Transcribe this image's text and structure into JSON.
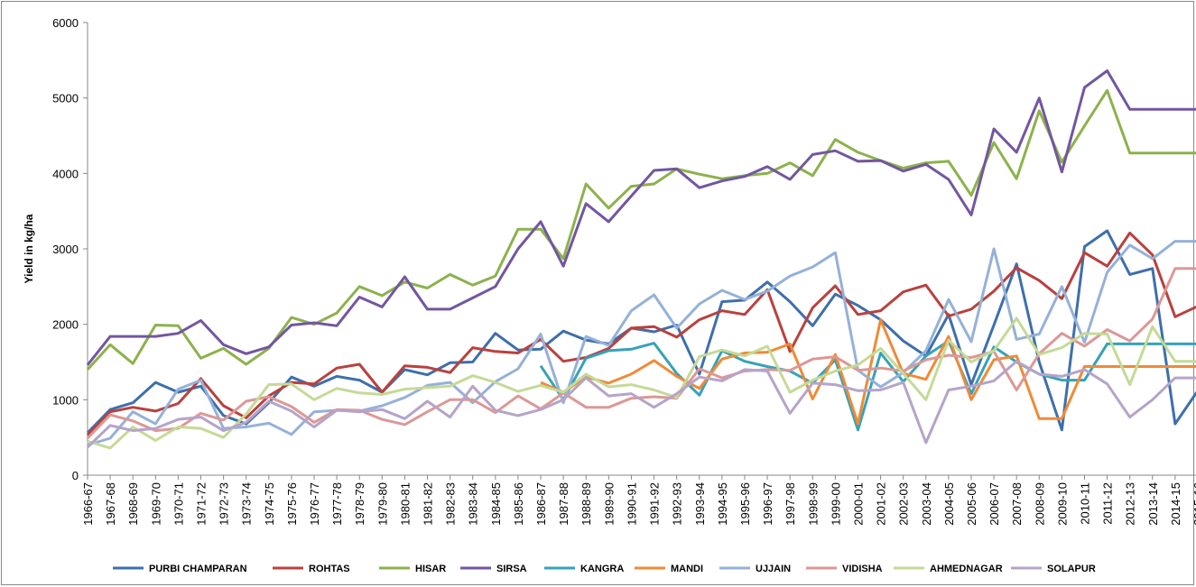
{
  "chart_data": {
    "type": "line",
    "y_label": "Yield in kg/ha",
    "grid": false,
    "legend": "bottom",
    "ylim": [
      0,
      6000
    ],
    "yticks": [
      0,
      1000,
      2000,
      3000,
      4000,
      5000,
      6000
    ],
    "categories": [
      "1966-67",
      "1967-68",
      "1968-69",
      "1969-70",
      "1970-71",
      "1971-72",
      "1972-73",
      "1973-74",
      "1974-75",
      "1975-76",
      "1976-77",
      "1977-78",
      "1978-79",
      "1979-80",
      "1980-81",
      "1981-82",
      "1982-83",
      "1983-84",
      "1984-85",
      "1985-86",
      "1986-87",
      "1987-88",
      "1988-89",
      "1989-90",
      "1990-91",
      "1991-92",
      "1992-93",
      "1993-94",
      "1994-95",
      "1995-96",
      "1996-97",
      "1997-98",
      "1998-99",
      "1999-00",
      "2000-01",
      "2001-02",
      "2002-03",
      "2003-04",
      "2004-05",
      "2005-06",
      "2006-07",
      "2007-08",
      "2008-09",
      "2009-10",
      "2010-11",
      "2011-12",
      "2012-13",
      "2013-14",
      "2014-15",
      "2015-16"
    ],
    "series": [
      {
        "name": "PURBI CHAMPARAN",
        "color": "#3e6fab",
        "values": [
          560,
          870,
          960,
          1230,
          1100,
          1180,
          790,
          680,
          960,
          1300,
          1180,
          1310,
          1260,
          1100,
          1400,
          1330,
          1490,
          1500,
          1880,
          1660,
          1670,
          1910,
          1790,
          1740,
          1950,
          1900,
          1990,
          1340,
          2300,
          2320,
          2560,
          2300,
          1980,
          2400,
          2250,
          2060,
          1780,
          1580,
          2130,
          1200,
          1990,
          2800,
          1500,
          600,
          3030,
          3240,
          2660,
          2740,
          680,
          1120
        ]
      },
      {
        "name": "ROHTAS",
        "color": "#b9413e",
        "values": [
          530,
          840,
          900,
          850,
          950,
          1280,
          920,
          760,
          1050,
          1230,
          1210,
          1420,
          1470,
          1100,
          1450,
          1430,
          1360,
          1690,
          1640,
          1620,
          1800,
          1510,
          1560,
          1680,
          1950,
          1970,
          1830,
          2060,
          2180,
          2130,
          2460,
          1640,
          2220,
          2510,
          2130,
          2180,
          2430,
          2520,
          2110,
          2200,
          2440,
          2750,
          2580,
          2340,
          2950,
          2770,
          3210,
          2920,
          2100,
          2240
        ]
      },
      {
        "name": "HISAR",
        "color": "#8cb24c",
        "values": [
          1400,
          1730,
          1480,
          1990,
          1980,
          1550,
          1680,
          1470,
          1680,
          2090,
          2000,
          2150,
          2500,
          2380,
          2560,
          2480,
          2660,
          2520,
          2640,
          3260,
          3260,
          2870,
          3860,
          3540,
          3830,
          3860,
          4060,
          3990,
          3930,
          3970,
          4000,
          4140,
          3970,
          4450,
          4280,
          4170,
          4070,
          4140,
          4160,
          3710,
          4410,
          3930,
          4830,
          4150,
          4630,
          5100,
          4270,
          4270,
          4270,
          4270
        ]
      },
      {
        "name": "SIRSA",
        "color": "#7356a0",
        "values": [
          1460,
          1840,
          1840,
          1840,
          1880,
          2050,
          1730,
          1610,
          1700,
          1990,
          2020,
          1980,
          2360,
          2230,
          2630,
          2200,
          2200,
          2350,
          2500,
          3000,
          3360,
          2770,
          3600,
          3360,
          3700,
          4040,
          4060,
          3810,
          3900,
          3960,
          4090,
          3920,
          4250,
          4300,
          4160,
          4170,
          4030,
          4120,
          3920,
          3450,
          4590,
          4280,
          5000,
          4020,
          5140,
          5360,
          4850,
          4850,
          4850,
          4850
        ]
      },
      {
        "name": "KANGRA",
        "color": "#36a2b8",
        "values": [
          null,
          null,
          null,
          null,
          null,
          null,
          null,
          null,
          null,
          null,
          null,
          null,
          null,
          null,
          null,
          null,
          null,
          null,
          null,
          null,
          1450,
          1000,
          1550,
          1650,
          1670,
          1750,
          1350,
          1060,
          1650,
          1510,
          1440,
          1380,
          1220,
          1530,
          600,
          1620,
          1240,
          1580,
          1780,
          1080,
          1700,
          1500,
          1340,
          1260,
          1260,
          1740,
          1740,
          1740,
          1740,
          1740
        ]
      },
      {
        "name": "MANDI",
        "color": "#f08a36",
        "values": [
          null,
          null,
          null,
          null,
          null,
          null,
          null,
          null,
          null,
          null,
          null,
          null,
          null,
          null,
          null,
          null,
          null,
          null,
          null,
          null,
          1230,
          1100,
          1300,
          1220,
          1340,
          1520,
          1310,
          1150,
          1540,
          1620,
          1630,
          1740,
          1010,
          1600,
          680,
          2060,
          1350,
          1270,
          1840,
          1000,
          1530,
          1580,
          750,
          750,
          1440,
          1440,
          1440,
          1440,
          1440,
          1440
        ]
      },
      {
        "name": "UJJAIN",
        "color": "#95b1d8",
        "values": [
          400,
          490,
          840,
          680,
          1140,
          1260,
          620,
          640,
          690,
          540,
          840,
          860,
          850,
          920,
          1030,
          1190,
          1230,
          960,
          1240,
          1410,
          1870,
          960,
          1840,
          1720,
          2180,
          2390,
          1950,
          2270,
          2450,
          2330,
          2440,
          2640,
          2760,
          2950,
          1390,
          1170,
          1360,
          1650,
          2330,
          1770,
          3000,
          1800,
          1870,
          2500,
          1760,
          2690,
          3050,
          2870,
          3100,
          3100
        ]
      },
      {
        "name": "VIDISHA",
        "color": "#dc9896",
        "values": [
          490,
          800,
          720,
          590,
          620,
          820,
          730,
          980,
          1040,
          910,
          700,
          870,
          860,
          740,
          670,
          840,
          1000,
          1000,
          830,
          1050,
          880,
          1090,
          900,
          900,
          1020,
          1040,
          1020,
          1410,
          1290,
          1380,
          1400,
          1390,
          1540,
          1570,
          1390,
          1420,
          1380,
          1530,
          1590,
          1560,
          1640,
          1130,
          1610,
          1880,
          1710,
          1930,
          1780,
          2070,
          2740,
          2740
        ]
      },
      {
        "name": "AHMEDNAGAR",
        "color": "#c4da97",
        "values": [
          450,
          360,
          640,
          460,
          640,
          620,
          500,
          810,
          1200,
          1210,
          1000,
          1150,
          1090,
          1070,
          1140,
          1160,
          1180,
          1320,
          1230,
          1110,
          1190,
          1100,
          1340,
          1170,
          1200,
          1130,
          1030,
          1570,
          1660,
          1580,
          1710,
          1100,
          1260,
          1380,
          1460,
          1680,
          1350,
          1000,
          1790,
          1500,
          1650,
          2080,
          1600,
          1690,
          1880,
          1870,
          1200,
          1970,
          1510,
          1510
        ]
      },
      {
        "name": "SOLAPUR",
        "color": "#b5a4c9",
        "values": [
          370,
          660,
          590,
          620,
          740,
          770,
          590,
          700,
          980,
          850,
          640,
          860,
          840,
          870,
          750,
          980,
          770,
          1180,
          860,
          790,
          870,
          1000,
          1290,
          1050,
          1080,
          900,
          1080,
          1300,
          1250,
          1400,
          1380,
          820,
          1220,
          1200,
          1120,
          1130,
          1230,
          430,
          1130,
          1180,
          1250,
          1510,
          1340,
          1310,
          1400,
          1210,
          770,
          1000,
          1290,
          1290
        ]
      }
    ]
  }
}
